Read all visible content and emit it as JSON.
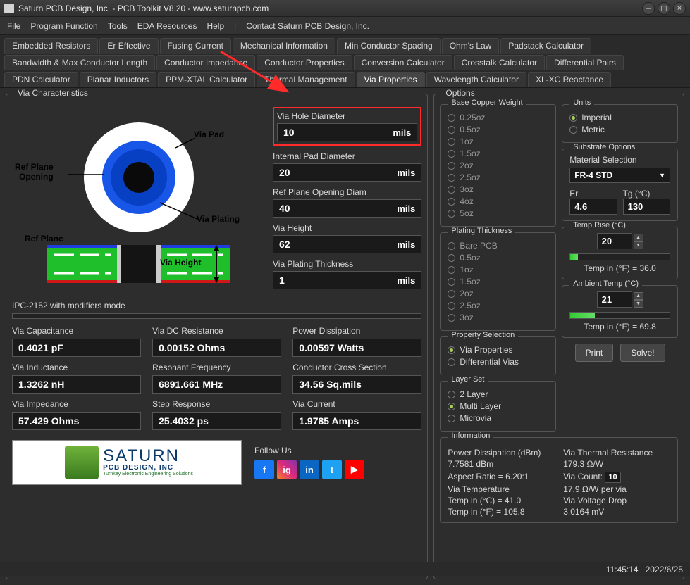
{
  "window": {
    "title": "Saturn PCB Design, Inc. - PCB Toolkit V8.20 - www.saturnpcb.com"
  },
  "menu": {
    "items": [
      "File",
      "Program Function",
      "Tools",
      "EDA Resources",
      "Help"
    ],
    "contact": "Contact Saturn PCB Design, Inc."
  },
  "tabs": {
    "row1": [
      "Embedded Resistors",
      "Er Effective",
      "Fusing Current",
      "Mechanical Information",
      "Min Conductor Spacing",
      "Ohm's Law",
      "Padstack Calculator"
    ],
    "row2": [
      "Bandwidth & Max Conductor Length",
      "Conductor Impedance",
      "Conductor Properties",
      "Conversion Calculator",
      "Crosstalk Calculator",
      "Differential Pairs"
    ],
    "row3": [
      "PDN Calculator",
      "Planar Inductors",
      "PPM-XTAL Calculator",
      "Thermal Management",
      "Via Properties",
      "Wavelength Calculator",
      "XL-XC Reactance"
    ],
    "active": "Via Properties"
  },
  "viaChar": {
    "legend": "Via Characteristics",
    "diagram": {
      "labels": {
        "viaPad": "Via Pad",
        "refPlaneOpening": "Ref Plane\nOpening",
        "viaPlating": "Via Plating",
        "refPlane": "Ref Plane",
        "viaHeight": "Via Height"
      },
      "colors": {
        "pad": "#ffffff",
        "opening": "#1856e8",
        "plating": "#0a0a0a",
        "pcb": "#1fbf2b",
        "refplane": "#e8c81c",
        "topcu": "#1d3de0",
        "botcu": "#d11818"
      }
    },
    "fields": [
      {
        "label": "Via Hole Diameter",
        "value": "10",
        "unit": "mils",
        "highlight": true
      },
      {
        "label": "Internal Pad Diameter",
        "value": "20",
        "unit": "mils"
      },
      {
        "label": "Ref Plane Opening Diam",
        "value": "40",
        "unit": "mils"
      },
      {
        "label": "Via Height",
        "value": "62",
        "unit": "mils"
      },
      {
        "label": "Via Plating Thickness",
        "value": "1",
        "unit": "mils"
      }
    ],
    "mode": "IPC-2152 with modifiers mode"
  },
  "results": [
    {
      "label": "Via Capacitance",
      "value": "0.4021 pF"
    },
    {
      "label": "Via DC Resistance",
      "value": "0.00152 Ohms"
    },
    {
      "label": "Power Dissipation",
      "value": "0.00597 Watts"
    },
    {
      "label": "Via Inductance",
      "value": "1.3262 nH"
    },
    {
      "label": "Resonant Frequency",
      "value": "6891.661 MHz"
    },
    {
      "label": "Conductor Cross Section",
      "value": "34.56 Sq.mils"
    },
    {
      "label": "Via Impedance",
      "value": "57.429 Ohms"
    },
    {
      "label": "Step Response",
      "value": "25.4032 ps"
    },
    {
      "label": "Via Current",
      "value": "1.9785 Amps"
    }
  ],
  "logo": {
    "name": "SATURN",
    "sub": "PCB DESIGN, INC",
    "tag": "Turnkey Electronic Engineering Solutions"
  },
  "follow": {
    "label": "Follow Us",
    "items": [
      {
        "name": "facebook",
        "bg": "#1877f2",
        "txt": "f"
      },
      {
        "name": "instagram",
        "bg": "linear-gradient(45deg,#f58529,#dd2a7b,#8134af)",
        "txt": "ig"
      },
      {
        "name": "linkedin",
        "bg": "#0a66c2",
        "txt": "in"
      },
      {
        "name": "twitter",
        "bg": "#1da1f2",
        "txt": "t"
      },
      {
        "name": "youtube",
        "bg": "#ff0000",
        "txt": "▶"
      }
    ]
  },
  "options": {
    "legend": "Options",
    "baseCopper": {
      "legend": "Base Copper Weight",
      "items": [
        "0.25oz",
        "0.5oz",
        "1oz",
        "1.5oz",
        "2oz",
        "2.5oz",
        "3oz",
        "4oz",
        "5oz"
      ],
      "disabled": true
    },
    "plating": {
      "legend": "Plating Thickness",
      "items": [
        "Bare PCB",
        "0.5oz",
        "1oz",
        "1.5oz",
        "2oz",
        "2.5oz",
        "3oz"
      ],
      "disabled": true
    },
    "propSel": {
      "legend": "Property Selection",
      "items": [
        "Via Properties",
        "Differential Vias"
      ],
      "selected": "Via Properties"
    },
    "layerSet": {
      "legend": "Layer Set",
      "items": [
        "2 Layer",
        "Multi Layer",
        "Microvia"
      ],
      "selected": "Multi Layer"
    },
    "units": {
      "legend": "Units",
      "items": [
        "Imperial",
        "Metric"
      ],
      "selected": "Imperial"
    },
    "substrate": {
      "legend": "Substrate Options",
      "matLabel": "Material Selection",
      "material": "FR-4 STD",
      "erLabel": "Er",
      "er": "4.6",
      "tgLabel": "Tg (°C)",
      "tg": "130"
    },
    "tempRise": {
      "legend": "Temp Rise (°C)",
      "value": "20",
      "note": "Temp in (°F) = 36.0",
      "fill": 8
    },
    "ambient": {
      "legend": "Ambient Temp (°C)",
      "value": "21",
      "note": "Temp in (°F) = 69.8",
      "fill": 25
    },
    "buttons": {
      "print": "Print",
      "solve": "Solve!"
    },
    "info": {
      "legend": "Information",
      "rows": [
        [
          "Power Dissipation (dBm)",
          "Via Thermal Resistance"
        ],
        [
          "7.7581 dBm",
          "179.3 Ω/W"
        ],
        [
          "",
          ""
        ],
        [
          "Aspect Ratio = 6.20:1",
          "Via Count:"
        ],
        [
          "Via Temperature",
          "17.9 Ω/W per via"
        ],
        [
          "Temp in (°C) = 41.0",
          "Via Voltage Drop"
        ],
        [
          "Temp in (°F) = 105.8",
          "3.0164 mV"
        ]
      ],
      "viaCount": "10"
    }
  },
  "status": {
    "time": "11:45:14",
    "date": "2022/6/25"
  },
  "arrow_color": "#ff2a2a"
}
